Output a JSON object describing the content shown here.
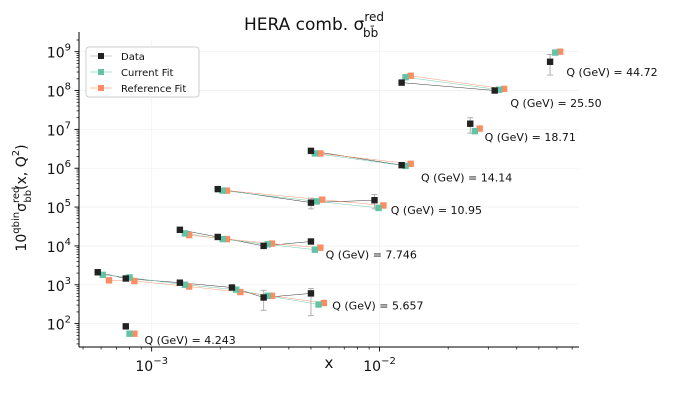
{
  "chart_data": {
    "type": "scatter",
    "title": "HERA comb. σ_bb̄^red",
    "title_main": "HERA comb. σ",
    "title_sup": "red",
    "title_sub": "bb̄",
    "xlabel": "x",
    "ylabel_parts": {
      "base": "10",
      "exp_prefix": "qbin",
      "sigma": "σ",
      "sigma_sup": "red",
      "sigma_sub": "bb",
      "args": "(x, Q",
      "q_sup": "2",
      "close": ")"
    },
    "xscale": "log",
    "yscale": "log",
    "xlim": [
      0.00048,
      0.075
    ],
    "ylim": [
      25,
      2000000000
    ],
    "x_ticks": [
      {
        "value": 0.001,
        "base": "10",
        "exp": "−3"
      },
      {
        "value": 0.01,
        "base": "10",
        "exp": "−2"
      }
    ],
    "y_ticks": [
      {
        "value": 100,
        "base": "10",
        "exp": "2"
      },
      {
        "value": 1000,
        "base": "10",
        "exp": "3"
      },
      {
        "value": 10000,
        "base": "10",
        "exp": "4"
      },
      {
        "value": 100000,
        "base": "10",
        "exp": "5"
      },
      {
        "value": 1000000,
        "base": "10",
        "exp": "6"
      },
      {
        "value": 10000000,
        "base": "10",
        "exp": "7"
      },
      {
        "value": 100000000,
        "base": "10",
        "exp": "8"
      },
      {
        "value": 1000000000,
        "base": "10",
        "exp": "9"
      }
    ],
    "grid": true,
    "legend_position": "upper-left",
    "colors": {
      "data": "#222222",
      "current_fit": "#66c2a5",
      "reference_fit": "#fc8d62"
    },
    "legend": [
      "Data",
      "Current Fit",
      "Reference Fit"
    ],
    "series": [
      {
        "name": "Data",
        "points": [
          {
            "x": 0.00077,
            "y": 85,
            "err_lo": 0,
            "err_hi": 0
          },
          {
            "x": 0.00058,
            "y": 2100,
            "err_lo": 0,
            "err_hi": 0
          },
          {
            "x": 0.00077,
            "y": 1450,
            "err_lo": 0,
            "err_hi": 0
          },
          {
            "x": 0.00133,
            "y": 1130,
            "err_lo": 0,
            "err_hi": 0
          },
          {
            "x": 0.00225,
            "y": 850,
            "err_lo": 0,
            "err_hi": 0
          },
          {
            "x": 0.0031,
            "y": 470,
            "err_lo": 250,
            "err_hi": 250
          },
          {
            "x": 0.005,
            "y": 600,
            "err_lo": 440,
            "err_hi": 200
          },
          {
            "x": 0.00133,
            "y": 26000,
            "err_lo": 0,
            "err_hi": 0
          },
          {
            "x": 0.00195,
            "y": 17000,
            "err_lo": 0,
            "err_hi": 0
          },
          {
            "x": 0.0031,
            "y": 10000,
            "err_lo": 0,
            "err_hi": 0
          },
          {
            "x": 0.005,
            "y": 13000,
            "err_lo": 0,
            "err_hi": 0
          },
          {
            "x": 0.00195,
            "y": 290000,
            "err_lo": 0,
            "err_hi": 0
          },
          {
            "x": 0.005,
            "y": 130000,
            "err_lo": 40000,
            "err_hi": 40000
          },
          {
            "x": 0.0095,
            "y": 150000,
            "err_lo": 60000,
            "err_hi": 60000
          },
          {
            "x": 0.005,
            "y": 2800000,
            "err_lo": 0,
            "err_hi": 0
          },
          {
            "x": 0.0125,
            "y": 1200000,
            "err_lo": 0,
            "err_hi": 0
          },
          {
            "x": 0.025,
            "y": 14000000,
            "err_lo": 6000000,
            "err_hi": 6000000
          },
          {
            "x": 0.0125,
            "y": 160000000,
            "err_lo": 0,
            "err_hi": 0
          },
          {
            "x": 0.032,
            "y": 100000000,
            "err_lo": 0,
            "err_hi": 0
          },
          {
            "x": 0.056,
            "y": 550000000,
            "err_lo": 300000000,
            "err_hi": 300000000
          }
        ]
      },
      {
        "name": "Current Fit",
        "points": [
          {
            "x": 0.0008,
            "y": 55
          },
          {
            "x": 0.00061,
            "y": 1800
          },
          {
            "x": 0.0008,
            "y": 1550
          },
          {
            "x": 0.0014,
            "y": 1000
          },
          {
            "x": 0.00235,
            "y": 750
          },
          {
            "x": 0.00323,
            "y": 520
          },
          {
            "x": 0.0054,
            "y": 310
          },
          {
            "x": 0.0014,
            "y": 21000
          },
          {
            "x": 0.00205,
            "y": 15000
          },
          {
            "x": 0.00323,
            "y": 11000
          },
          {
            "x": 0.0052,
            "y": 8000
          },
          {
            "x": 0.00205,
            "y": 265000
          },
          {
            "x": 0.0053,
            "y": 140000
          },
          {
            "x": 0.0099,
            "y": 95000
          },
          {
            "x": 0.0052,
            "y": 2400000
          },
          {
            "x": 0.013,
            "y": 1150000
          },
          {
            "x": 0.0262,
            "y": 9000000
          },
          {
            "x": 0.013,
            "y": 220000000
          },
          {
            "x": 0.0335,
            "y": 105000000
          },
          {
            "x": 0.059,
            "y": 950000000
          }
        ]
      },
      {
        "name": "Reference Fit",
        "points": [
          {
            "x": 0.00084,
            "y": 55
          },
          {
            "x": 0.00065,
            "y": 1300
          },
          {
            "x": 0.00084,
            "y": 1250
          },
          {
            "x": 0.00146,
            "y": 900
          },
          {
            "x": 0.00245,
            "y": 650
          },
          {
            "x": 0.00337,
            "y": 520
          },
          {
            "x": 0.0057,
            "y": 340
          },
          {
            "x": 0.00146,
            "y": 19000
          },
          {
            "x": 0.00214,
            "y": 15000
          },
          {
            "x": 0.00337,
            "y": 11500
          },
          {
            "x": 0.0055,
            "y": 9000
          },
          {
            "x": 0.00214,
            "y": 265000
          },
          {
            "x": 0.0056,
            "y": 155000
          },
          {
            "x": 0.0104,
            "y": 110000
          },
          {
            "x": 0.0055,
            "y": 2400000
          },
          {
            "x": 0.0137,
            "y": 1300000
          },
          {
            "x": 0.0275,
            "y": 10500000
          },
          {
            "x": 0.0137,
            "y": 240000000
          },
          {
            "x": 0.0352,
            "y": 110000000
          },
          {
            "x": 0.062,
            "y": 1000000000
          }
        ]
      }
    ],
    "groups": [
      {
        "label": "Q (GeV) = 4.243",
        "label_x": 0.00093,
        "label_y": 38,
        "indices": [
          0
        ]
      },
      {
        "label": "Q (GeV) = 5.657",
        "label_x": 0.0062,
        "label_y": 290,
        "indices": [
          1,
          2,
          3,
          4,
          5,
          6
        ]
      },
      {
        "label": "Q (GeV) = 7.746",
        "label_x": 0.0058,
        "label_y": 6000,
        "indices": [
          7,
          8,
          9,
          10
        ]
      },
      {
        "label": "Q (GeV) = 10.95",
        "label_x": 0.0112,
        "label_y": 85000,
        "indices": [
          11,
          12,
          13
        ]
      },
      {
        "label": "Q (GeV) = 14.14",
        "label_x": 0.0152,
        "label_y": 580000,
        "indices": [
          14,
          15
        ]
      },
      {
        "label": "Q (GeV) = 18.71",
        "label_x": 0.0289,
        "label_y": 6300000,
        "indices": [
          16
        ]
      },
      {
        "label": "Q (GeV) = 25.50",
        "label_x": 0.0375,
        "label_y": 48000000,
        "indices": [
          17,
          18
        ]
      },
      {
        "label": "Q (GeV) = 44.72",
        "label_x": 0.066,
        "label_y": 300000000,
        "indices": [
          19
        ]
      }
    ]
  }
}
